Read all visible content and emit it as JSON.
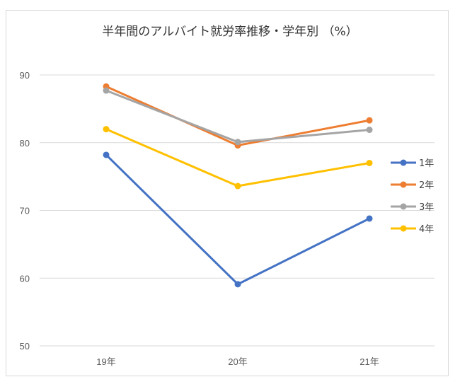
{
  "chart_data": {
    "type": "line",
    "title": "半年間のアルバイト就労率推移・学年別 （%）",
    "categories": [
      "19年",
      "20年",
      "21年"
    ],
    "ylim": [
      50,
      90
    ],
    "yticks": [
      50,
      60,
      70,
      80,
      90
    ],
    "grid": true,
    "legend_position": "right",
    "series": [
      {
        "name": "1年",
        "color": "#4472c4",
        "values": [
          78.2,
          59.1,
          68.8
        ]
      },
      {
        "name": "2年",
        "color": "#ed7d31",
        "values": [
          88.3,
          79.6,
          83.3
        ]
      },
      {
        "name": "3年",
        "color": "#a5a5a5",
        "values": [
          87.7,
          80.1,
          81.9
        ]
      },
      {
        "name": "4年",
        "color": "#ffc000",
        "values": [
          82.0,
          73.6,
          77.0
        ]
      }
    ]
  }
}
